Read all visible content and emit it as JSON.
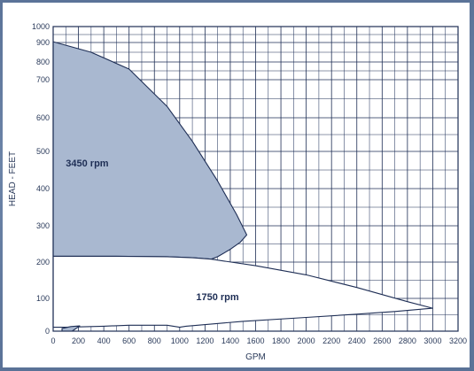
{
  "chart_data": {
    "type": "area",
    "title": "",
    "xlabel": "GPM",
    "ylabel": "HEAD - FEET",
    "xlim": [
      0,
      3200
    ],
    "ylim": [
      0,
      1000
    ],
    "grid": true,
    "x_ticks": [
      0,
      200,
      400,
      600,
      800,
      1000,
      1200,
      1400,
      1600,
      1800,
      2000,
      2200,
      2400,
      2600,
      2800,
      3000,
      3200
    ],
    "y_ticks": [
      0,
      100,
      200,
      300,
      400,
      500,
      600,
      700,
      800,
      900,
      1000
    ],
    "series": [
      {
        "name": "3450 rpm",
        "fill": "#a9b8d0",
        "stroke": "#1e2e55",
        "label_at": [
          100,
          460
        ],
        "boundary": [
          [
            0,
            905
          ],
          [
            300,
            850
          ],
          [
            600,
            760
          ],
          [
            900,
            630
          ],
          [
            1100,
            530
          ],
          [
            1300,
            420
          ],
          [
            1450,
            330
          ],
          [
            1530,
            275
          ],
          [
            1480,
            255
          ],
          [
            1400,
            235
          ],
          [
            1300,
            215
          ],
          [
            1250,
            208
          ],
          [
            1100,
            212
          ],
          [
            900,
            215
          ],
          [
            500,
            216
          ],
          [
            0,
            216
          ]
        ]
      },
      {
        "name": "1750 rpm",
        "fill": "#ffffff",
        "stroke": "#1e2e55",
        "label_at": [
          1130,
          95
        ],
        "boundary": [
          [
            0,
            216
          ],
          [
            500,
            216
          ],
          [
            900,
            215
          ],
          [
            1100,
            212
          ],
          [
            1250,
            208
          ],
          [
            1600,
            190
          ],
          [
            2000,
            165
          ],
          [
            2400,
            130
          ],
          [
            2800,
            90
          ],
          [
            3000,
            70
          ],
          [
            2700,
            60
          ],
          [
            2400,
            52
          ],
          [
            2000,
            42
          ],
          [
            1500,
            30
          ],
          [
            1050,
            15
          ],
          [
            1000,
            12
          ],
          [
            900,
            18
          ],
          [
            600,
            18
          ],
          [
            400,
            15
          ],
          [
            100,
            12
          ],
          [
            0,
            12
          ]
        ]
      },
      {
        "name": "",
        "fill": "#a9b8d0",
        "stroke": "#1e2e55",
        "boundary": [
          [
            70,
            0
          ],
          [
            150,
            0
          ],
          [
            210,
            16
          ],
          [
            140,
            14
          ],
          [
            70,
            8
          ]
        ]
      }
    ]
  }
}
